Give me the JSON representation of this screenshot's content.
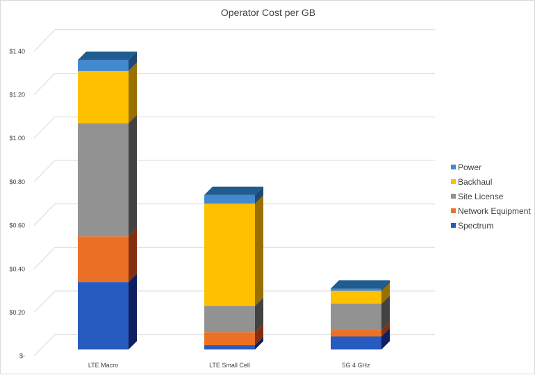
{
  "chart_data": {
    "type": "bar",
    "stacked": true,
    "style": "3d",
    "title": "Operator Cost per GB",
    "xlabel": "",
    "ylabel": "",
    "ylim": [
      0,
      1.4
    ],
    "y_ticks": [
      0,
      0.2,
      0.4,
      0.6,
      0.8,
      1.0,
      1.2,
      1.4
    ],
    "y_tick_labels": [
      "$-",
      "$0.20",
      "$0.40",
      "$0.60",
      "$0.80",
      "$1.00",
      "$1.20",
      "$1.40"
    ],
    "grid": true,
    "legend_position": "right",
    "categories": [
      "LTE Macro",
      "LTE Small Cell",
      "5G 4 GHz"
    ],
    "series": [
      {
        "name": "Spectrum",
        "values": [
          0.31,
          0.02,
          0.06
        ],
        "color": "#285BBF",
        "side_color": "#0F1F5F"
      },
      {
        "name": "Network Equipment",
        "values": [
          0.21,
          0.06,
          0.03
        ],
        "color": "#ED7125",
        "side_color": "#843010"
      },
      {
        "name": "Site License",
        "values": [
          0.52,
          0.12,
          0.12
        ],
        "color": "#929292",
        "side_color": "#424242"
      },
      {
        "name": "Backhaul",
        "values": [
          0.24,
          0.47,
          0.06
        ],
        "color": "#FFC000",
        "side_color": "#977000"
      },
      {
        "name": "Power",
        "values": [
          0.05,
          0.04,
          0.01
        ],
        "color": "#4389CF",
        "side_color": "#1B4A78"
      }
    ],
    "top_color": "#1F5C8F"
  }
}
